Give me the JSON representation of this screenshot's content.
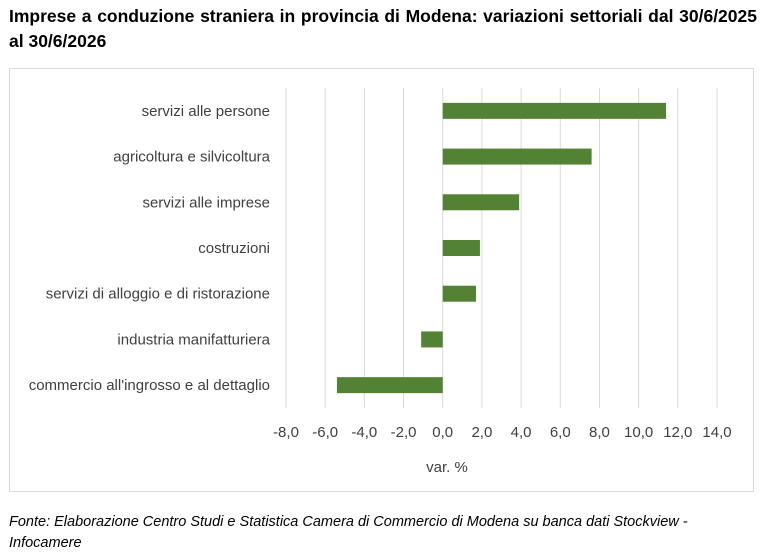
{
  "title": "Imprese a conduzione straniera in provincia di Modena: variazioni settoriali dal 30/6/2025 al 30/6/2026",
  "source": "Fonte: Elaborazione Centro Studi e Statistica Camera di Commercio di Modena su banca dati Stockview - Infocamere",
  "colors": {
    "bar": "#548235",
    "grid": "#d9d9d9",
    "text": "#404040"
  },
  "chart_data": {
    "type": "bar",
    "orientation": "horizontal",
    "categories": [
      "servizi alle persone",
      "agricoltura e silvicoltura",
      "servizi alle imprese",
      "costruzioni",
      "servizi di alloggio e di ristorazione",
      "industria manifatturiera",
      "commercio all'ingrosso e al dettaglio"
    ],
    "values": [
      11.4,
      7.6,
      3.9,
      1.9,
      1.7,
      -1.1,
      -5.4
    ],
    "xlabel": "var. %",
    "ylabel": "",
    "xlim": [
      -8,
      14
    ],
    "xticks": [
      "-8,0",
      "-6,0",
      "-4,0",
      "-2,0",
      "0,0",
      "2,0",
      "4,0",
      "6,0",
      "8,0",
      "10,0",
      "12,0",
      "14,0"
    ],
    "grid": true,
    "legend": "none"
  }
}
